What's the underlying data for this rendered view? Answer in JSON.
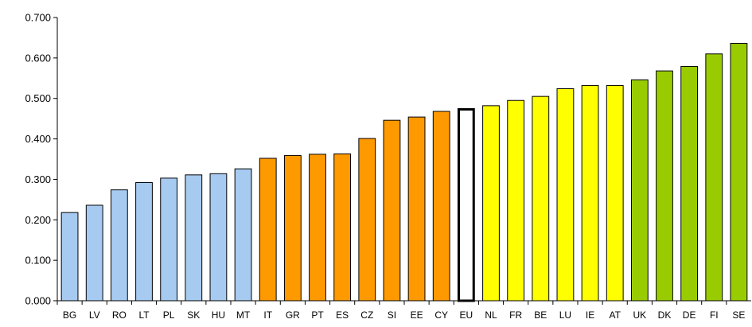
{
  "chart_data": {
    "type": "bar",
    "title": "",
    "xlabel": "",
    "ylabel": "",
    "ylim": [
      0,
      0.7
    ],
    "yticks": [
      "0.000",
      "0.100",
      "0.200",
      "0.300",
      "0.400",
      "0.500",
      "0.600",
      "0.700"
    ],
    "grid": false,
    "legend": "none",
    "categories": [
      "BG",
      "LV",
      "RO",
      "LT",
      "PL",
      "SK",
      "HU",
      "MT",
      "IT",
      "GR",
      "PT",
      "ES",
      "CZ",
      "SI",
      "EE",
      "CY",
      "EU",
      "NL",
      "FR",
      "BE",
      "LU",
      "IE",
      "AT",
      "UK",
      "DK",
      "DE",
      "FI",
      "SE"
    ],
    "values": [
      0.219,
      0.237,
      0.275,
      0.293,
      0.304,
      0.312,
      0.315,
      0.327,
      0.353,
      0.36,
      0.363,
      0.364,
      0.402,
      0.447,
      0.455,
      0.469,
      0.476,
      0.483,
      0.496,
      0.506,
      0.525,
      0.533,
      0.533,
      0.547,
      0.569,
      0.58,
      0.611,
      0.637
    ],
    "groups": [
      {
        "members": [
          "BG",
          "LV",
          "RO",
          "LT",
          "PL",
          "SK",
          "HU",
          "MT"
        ],
        "color": "#a6caf0"
      },
      {
        "members": [
          "IT",
          "GR",
          "PT",
          "ES",
          "CZ",
          "SI",
          "EE",
          "CY"
        ],
        "color": "#ff9900"
      },
      {
        "members": [
          "EU"
        ],
        "color": "#ffffff",
        "outline": "#000000"
      },
      {
        "members": [
          "NL",
          "FR",
          "BE",
          "LU",
          "IE",
          "AT"
        ],
        "color": "#ffff00"
      },
      {
        "members": [
          "UK",
          "DK",
          "DE",
          "FI",
          "SE"
        ],
        "color": "#99cc00"
      }
    ]
  }
}
